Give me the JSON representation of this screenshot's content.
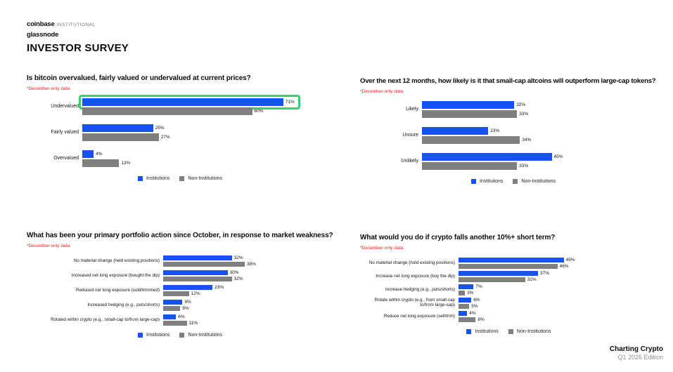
{
  "header": {
    "brand_line1_bold": "coinbase",
    "brand_line1_light": "INSTITUTIONAL",
    "brand_line2": "glassnode",
    "page_title": "INVESTOR SURVEY"
  },
  "footer": {
    "title": "Charting Crypto",
    "subtitle": "Q1 2026 Edition"
  },
  "legend": {
    "institutions": "Institutions",
    "non_institutions": "Non-Institutions"
  },
  "colors": {
    "institutions_blue": "#1652f0",
    "non_institutions_gray": "#7f7f7f",
    "note_red": "#ff1a1a",
    "highlight_green": "#35d073"
  },
  "chart_data": [
    {
      "type": "bar",
      "orientation": "horizontal",
      "title": "Is bitcoin overvalued, fairly valued or undervalued at current prices?",
      "note": "*December-only data",
      "categories": [
        "Undervalued",
        "Fairly valued",
        "Overvalued"
      ],
      "series": [
        {
          "name": "Institutions",
          "values": [
            71,
            25,
            4
          ]
        },
        {
          "name": "Non-Institutions",
          "values": [
            60,
            27,
            13
          ]
        }
      ],
      "value_suffix": "%",
      "xlim": [
        0,
        80
      ],
      "legend_position": "bottom",
      "highlight": {
        "series": "Institutions",
        "category": "Undervalued",
        "style": "green box annotation around bar"
      }
    },
    {
      "type": "bar",
      "orientation": "horizontal",
      "title": "Over the next 12 months, how likely is it that small-cap altcoins will outperform large-cap tokens?",
      "note": "*December-only data",
      "categories": [
        "Likely",
        "Unsure",
        "Unlikely"
      ],
      "series": [
        {
          "name": "Institutions",
          "values": [
            32,
            23,
            45
          ]
        },
        {
          "name": "Non-Institutions",
          "values": [
            33,
            34,
            33
          ]
        }
      ],
      "value_suffix": "%",
      "xlim": [
        0,
        50
      ],
      "legend_position": "bottom"
    },
    {
      "type": "bar",
      "orientation": "horizontal",
      "title": "What has been your primary portfolio action since October, in response to market weakness?",
      "note": "*December-only data",
      "categories": [
        "No material change (held existing positions)",
        "Increased net long exposure (bought the dip)",
        "Reduced net long exposure (sold/trimmed)",
        "Increased hedging (e.g., puts/shorts)",
        "Rotated within crypto (e.g., small-cap to/from large-cap)"
      ],
      "series": [
        {
          "name": "Institutions",
          "values": [
            32,
            30,
            23,
            9,
            6
          ]
        },
        {
          "name": "Non-Institutions",
          "values": [
            38,
            32,
            12,
            8,
            11
          ]
        }
      ],
      "value_suffix": "%",
      "xlim": [
        0,
        40
      ],
      "legend_position": "bottom"
    },
    {
      "type": "bar",
      "orientation": "horizontal",
      "title": "What would you do if crypto falls another 10%+ short term?",
      "note": "*December-only data",
      "categories": [
        "No material change (hold existing positions)",
        "Increase net long exposure (buy the dip)",
        "Increase hedging (e.g., puts/shorts)",
        "Rotate within crypto (e.g., from small-cap to/from large-cap)",
        "Reduce net long exposure (sell/trim)"
      ],
      "series": [
        {
          "name": "Institutions",
          "values": [
            49,
            37,
            7,
            6,
            4
          ]
        },
        {
          "name": "Non-Institutions",
          "values": [
            46,
            31,
            3,
            5,
            8
          ]
        }
      ],
      "value_suffix": "%",
      "xlim": [
        0,
        55
      ],
      "legend_position": "bottom"
    }
  ]
}
